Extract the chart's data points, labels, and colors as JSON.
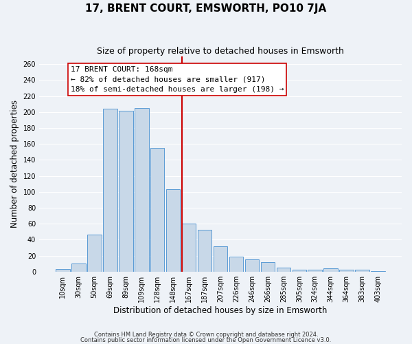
{
  "title": "17, BRENT COURT, EMSWORTH, PO10 7JA",
  "subtitle": "Size of property relative to detached houses in Emsworth",
  "xlabel": "Distribution of detached houses by size in Emsworth",
  "ylabel": "Number of detached properties",
  "categories": [
    "10sqm",
    "30sqm",
    "50sqm",
    "69sqm",
    "89sqm",
    "109sqm",
    "128sqm",
    "148sqm",
    "167sqm",
    "187sqm",
    "207sqm",
    "226sqm",
    "246sqm",
    "266sqm",
    "285sqm",
    "305sqm",
    "324sqm",
    "344sqm",
    "364sqm",
    "383sqm",
    "403sqm"
  ],
  "values": [
    3,
    10,
    46,
    204,
    202,
    205,
    155,
    103,
    60,
    52,
    32,
    19,
    15,
    12,
    5,
    2,
    2,
    4,
    2,
    2,
    1
  ],
  "bar_color": "#c8d8e8",
  "bar_edge_color": "#5b9bd5",
  "highlight_index": 8,
  "highlight_line_color": "#cc0000",
  "annotation_text": "17 BRENT COURT: 168sqm\n← 82% of detached houses are smaller (917)\n18% of semi-detached houses are larger (198) →",
  "annotation_box_edge": "#cc0000",
  "ylim": [
    0,
    270
  ],
  "yticks": [
    0,
    20,
    40,
    60,
    80,
    100,
    120,
    140,
    160,
    180,
    200,
    220,
    240,
    260
  ],
  "footnote1": "Contains HM Land Registry data © Crown copyright and database right 2024.",
  "footnote2": "Contains public sector information licensed under the Open Government Licence v3.0.",
  "bg_color": "#eef2f7",
  "grid_color": "#ffffff",
  "title_fontsize": 11,
  "subtitle_fontsize": 9,
  "label_fontsize": 8.5,
  "tick_fontsize": 7,
  "annotation_fontsize": 8,
  "footnote_fontsize": 6
}
